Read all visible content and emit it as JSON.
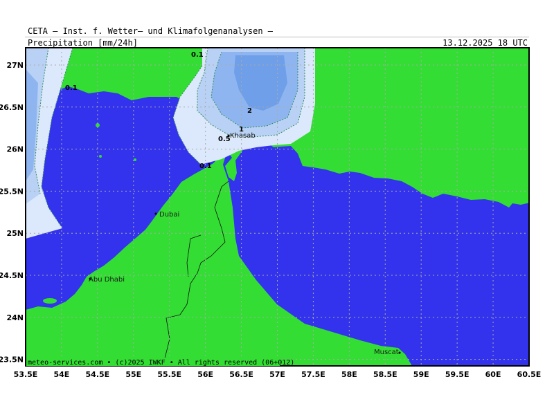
{
  "header": {
    "source": "CETA — Inst. f. Wetter— und Klimafolgenanalysen —",
    "parameter": "Precipitation [mm/24h]",
    "datetime": "13.12.2025 18 UTC"
  },
  "footer": {
    "credit": "meteo-services.com • (c)2025 IWKF • All rights reserved (06+012)"
  },
  "axes": {
    "lon_labels": [
      "53.5E",
      "54E",
      "54.5E",
      "55E",
      "55.5E",
      "56E",
      "56.5E",
      "57E",
      "57.5E",
      "58E",
      "58.5E",
      "59E",
      "59.5E",
      "60E",
      "60.5E"
    ],
    "lat_labels": [
      "27N",
      "26.5N",
      "26N",
      "25.5N",
      "25N",
      "24.5N",
      "24N",
      "23.5N"
    ]
  },
  "places": [
    "Khasab",
    "Dubai",
    "Abu Dhabi",
    "Muscat"
  ],
  "contour_labels": [
    "0.1",
    "0.1",
    "0.1",
    "0.5",
    "1",
    "2"
  ],
  "colors": {
    "sea": "#3333ee",
    "land": "#33dd33",
    "precip_lightest": "#dce8fb",
    "precip_light": "#b8d1f5",
    "precip_mid": "#8fb5f0",
    "precip_dark": "#6f9fe8",
    "border": "#000000",
    "grid": "#aaaaaa"
  }
}
